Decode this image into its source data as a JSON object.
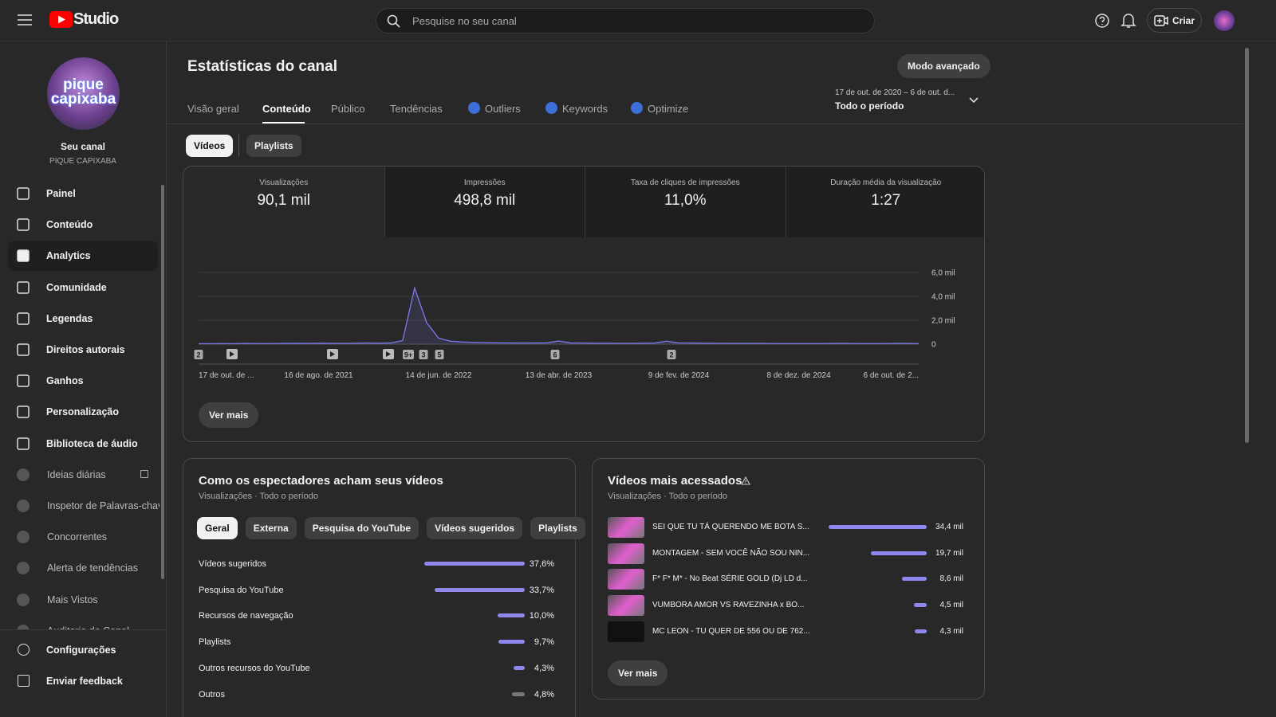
{
  "header": {
    "logo": "Studio",
    "search_placeholder": "Pesquise no seu canal",
    "create": "Criar"
  },
  "sidebar": {
    "avatar_text": "pique capixaba",
    "channel_title": "Seu canal",
    "channel_name": "PIQUE CAPIXABA",
    "items": [
      "Painel",
      "Conteúdo",
      "Analytics",
      "Comunidade",
      "Legendas",
      "Direitos autorais",
      "Ganhos",
      "Personalização",
      "Biblioteca de áudio",
      "Ideias diárias",
      "Inspetor de Palavras-chav",
      "Concorrentes",
      "Alerta de tendências",
      "Mais Vistos",
      "Auditoria de Canal"
    ],
    "footer": [
      "Configurações",
      "Enviar feedback"
    ]
  },
  "page": {
    "title": "Estatísticas do canal",
    "advanced": "Modo avançado",
    "date_range": "17 de out. de 2020 – 6 de out. d...",
    "period": "Todo o período",
    "tabs": [
      "Visão geral",
      "Conteúdo",
      "Público",
      "Tendências",
      "Outliers",
      "Keywords",
      "Optimize"
    ],
    "subtabs": [
      "Vídeos",
      "Playlists"
    ]
  },
  "stats": [
    {
      "label": "Visualizações",
      "value": "90,1 mil"
    },
    {
      "label": "Impressões",
      "value": "498,8 mil"
    },
    {
      "label": "Taxa de cliques de impressões",
      "value": "11,0%"
    },
    {
      "label": "Duração média da visualização",
      "value": "1:27"
    }
  ],
  "chart": {
    "ylim": [
      0,
      6000
    ],
    "yticks": [
      {
        "value": 0,
        "label": "0"
      },
      {
        "value": 2000,
        "label": "2,0 mil"
      },
      {
        "value": 4000,
        "label": "4,0 mil"
      },
      {
        "value": 6000,
        "label": "6,0 mil"
      }
    ],
    "x_labels": [
      "17 de out. de ...",
      "16 de ago. de 2021",
      "14 de jun. de 2022",
      "13 de abr. de 2023",
      "9 de fev. de 2024",
      "8 de dez. de 2024",
      "6 de out. de 2..."
    ],
    "color": "#7b74e6",
    "values": [
      40,
      40,
      50,
      40,
      60,
      50,
      50,
      60,
      70,
      60,
      80,
      70,
      60,
      80,
      90,
      80,
      100,
      300,
      4700,
      1800,
      500,
      250,
      180,
      150,
      120,
      110,
      100,
      90,
      100,
      110,
      260,
      100,
      90,
      80,
      80,
      70,
      70,
      80,
      90,
      250,
      110,
      90,
      80,
      70,
      70,
      60,
      60,
      60,
      50,
      50,
      50,
      50,
      50,
      60,
      60,
      50,
      50,
      50,
      60,
      60,
      50
    ],
    "markers": [
      "2",
      "9+",
      "3",
      "5",
      "6",
      "2"
    ],
    "button": "Ver mais"
  },
  "traffic": {
    "title": "Como os espectadores acham seus vídeos",
    "subtitle": "Visualizações · Todo o período",
    "chips": [
      "Geral",
      "Externa",
      "Pesquisa do YouTube",
      "Vídeos sugeridos",
      "Playlists"
    ],
    "rows": [
      {
        "name": "Vídeos sugeridos",
        "value": 37.6,
        "label": "37,6%"
      },
      {
        "name": "Pesquisa do YouTube",
        "value": 33.7,
        "label": "33,7%"
      },
      {
        "name": "Recursos de navegação",
        "value": 10.0,
        "label": "10,0%"
      },
      {
        "name": "Playlists",
        "value": 9.7,
        "label": "9,7%"
      },
      {
        "name": "Outros recursos do YouTube",
        "value": 4.3,
        "label": "4,3%"
      },
      {
        "name": "Outros",
        "value": 4.8,
        "label": "4,8%"
      }
    ]
  },
  "top_videos": {
    "title": "Vídeos mais acessados",
    "subtitle": "Visualizações · Todo o período",
    "rows": [
      {
        "title": "SEI QUE TU TÁ QUERENDO ME BOTA S...",
        "value": 34400,
        "label": "34,4 mil"
      },
      {
        "title": "MONTAGEM - SEM VOCÊ NÃO SOU NIN...",
        "value": 19700,
        "label": "19,7 mil"
      },
      {
        "title": "F* F* M* - No Beat SÉRIE GOLD (Dj LD d...",
        "value": 8600,
        "label": "8,6 mil"
      },
      {
        "title": "VUMBORA AMOR VS RAVEZINHA x BO...",
        "value": 4500,
        "label": "4,5 mil"
      },
      {
        "title": "MC LEON - TU QUER DE 556 OU DE 762...",
        "value": 4300,
        "label": "4,3 mil"
      }
    ],
    "button": "Ver mais"
  }
}
